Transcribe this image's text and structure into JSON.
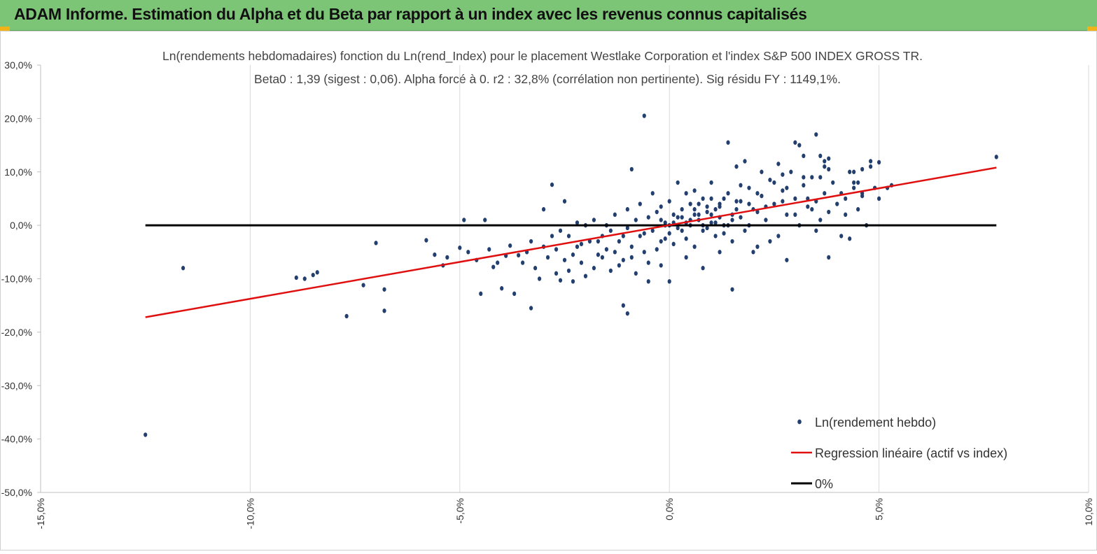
{
  "header": {
    "title": "ADAM Informe. Estimation du Alpha et du Beta par rapport à un index avec les revenus connus capitalisés"
  },
  "colors": {
    "banner": "#7dc576",
    "points": "#233f6e",
    "regression": "#e01010",
    "zero_line": "#000000",
    "grid": "#d9d9d9"
  },
  "chart_data": {
    "type": "scatter",
    "title": "Ln(rendements hebdomadaires) fonction du Ln(rend_Index) pour le placement Westlake Corporation et l'index S&P 500 INDEX GROSS TR.",
    "subtitle": "Beta0 : 1,39 (sigest : 0,06). Alpha forcé à 0. r2 : 32,8% (corrélation non pertinente). Sig résidu FY : 1149,1%.",
    "xlim": [
      -0.15,
      0.1
    ],
    "ylim": [
      -0.5,
      0.3
    ],
    "x_ticks": [
      -0.15,
      -0.1,
      -0.05,
      0.0,
      0.05,
      0.1
    ],
    "x_tick_labels": [
      "-15,0%",
      "-10,0%",
      "-5,0%",
      "0,0%",
      "5,0%",
      "10,0%"
    ],
    "y_ticks": [
      0.3,
      0.2,
      0.1,
      0.0,
      -0.1,
      -0.2,
      -0.3,
      -0.4,
      -0.5
    ],
    "y_tick_labels": [
      "30,0%",
      "20,0%",
      "10,0%",
      "0,0%",
      "-10,0%",
      "-20,0%",
      "-30,0%",
      "-40,0%",
      "-50,0%"
    ],
    "grid": "vertical",
    "legend_position": "bottom-right",
    "series": [
      {
        "name": "Ln(rendement hebdo)",
        "kind": "points",
        "points": [
          [
            -0.125,
            -0.392
          ],
          [
            -0.116,
            -0.08
          ],
          [
            -0.089,
            -0.098
          ],
          [
            -0.087,
            -0.1
          ],
          [
            -0.085,
            -0.093
          ],
          [
            -0.084,
            -0.088
          ],
          [
            -0.077,
            -0.17
          ],
          [
            -0.073,
            -0.112
          ],
          [
            -0.07,
            -0.033
          ],
          [
            -0.068,
            -0.12
          ],
          [
            -0.068,
            -0.16
          ],
          [
            -0.058,
            -0.028
          ],
          [
            -0.056,
            -0.055
          ],
          [
            -0.054,
            -0.075
          ],
          [
            -0.053,
            -0.06
          ],
          [
            -0.05,
            -0.042
          ],
          [
            -0.049,
            0.01
          ],
          [
            -0.048,
            -0.05
          ],
          [
            -0.046,
            -0.065
          ],
          [
            -0.045,
            -0.128
          ],
          [
            -0.044,
            0.01
          ],
          [
            -0.043,
            -0.045
          ],
          [
            -0.042,
            -0.078
          ],
          [
            -0.041,
            -0.07
          ],
          [
            -0.04,
            -0.118
          ],
          [
            -0.039,
            -0.057
          ],
          [
            -0.038,
            -0.038
          ],
          [
            -0.037,
            -0.128
          ],
          [
            -0.036,
            -0.056
          ],
          [
            -0.035,
            -0.07
          ],
          [
            -0.034,
            -0.05
          ],
          [
            -0.033,
            -0.03
          ],
          [
            -0.032,
            -0.08
          ],
          [
            -0.031,
            -0.1
          ],
          [
            -0.03,
            -0.04
          ],
          [
            -0.029,
            -0.06
          ],
          [
            -0.028,
            -0.02
          ],
          [
            -0.027,
            -0.045
          ],
          [
            -0.026,
            -0.01
          ],
          [
            -0.025,
            -0.065
          ],
          [
            -0.024,
            -0.085
          ],
          [
            -0.023,
            -0.055
          ],
          [
            -0.022,
            0.005
          ],
          [
            -0.021,
            -0.035
          ],
          [
            -0.02,
            -0.095
          ],
          [
            -0.033,
            -0.155
          ],
          [
            -0.03,
            0.03
          ],
          [
            -0.028,
            0.076
          ],
          [
            -0.027,
            -0.09
          ],
          [
            -0.026,
            -0.103
          ],
          [
            -0.025,
            0.045
          ],
          [
            -0.024,
            -0.02
          ],
          [
            -0.023,
            -0.105
          ],
          [
            -0.022,
            -0.04
          ],
          [
            -0.021,
            -0.07
          ],
          [
            -0.02,
            0.0
          ],
          [
            -0.019,
            -0.03
          ],
          [
            -0.018,
            -0.08
          ],
          [
            -0.017,
            -0.055
          ],
          [
            -0.016,
            -0.02
          ],
          [
            -0.015,
            -0.045
          ],
          [
            -0.014,
            -0.085
          ],
          [
            -0.013,
            0.02
          ],
          [
            -0.012,
            -0.03
          ],
          [
            -0.011,
            -0.065
          ],
          [
            -0.01,
            -0.005
          ],
          [
            -0.009,
            -0.04
          ],
          [
            -0.008,
            0.01
          ],
          [
            -0.007,
            -0.02
          ],
          [
            -0.006,
            -0.05
          ],
          [
            -0.005,
            0.015
          ],
          [
            -0.004,
            -0.01
          ],
          [
            -0.003,
            0.025
          ],
          [
            -0.002,
            -0.03
          ],
          [
            -0.001,
            0.005
          ],
          [
            0.0,
            -0.015
          ],
          [
            0.001,
            0.02
          ],
          [
            0.002,
            -0.005
          ],
          [
            0.003,
            0.03
          ],
          [
            0.004,
            -0.025
          ],
          [
            0.005,
            0.01
          ],
          [
            0.006,
            -0.04
          ],
          [
            0.007,
            0.04
          ],
          [
            0.008,
            0.0
          ],
          [
            0.009,
            0.025
          ],
          [
            -0.018,
            0.01
          ],
          [
            -0.017,
            -0.03
          ],
          [
            -0.016,
            -0.06
          ],
          [
            -0.015,
            0.0
          ],
          [
            -0.014,
            -0.01
          ],
          [
            -0.013,
            -0.05
          ],
          [
            -0.012,
            -0.075
          ],
          [
            -0.011,
            -0.02
          ],
          [
            -0.01,
            0.03
          ],
          [
            -0.009,
            -0.06
          ],
          [
            -0.008,
            -0.09
          ],
          [
            -0.007,
            0.04
          ],
          [
            -0.006,
            -0.015
          ],
          [
            -0.005,
            -0.07
          ],
          [
            -0.004,
            0.06
          ],
          [
            -0.003,
            -0.045
          ],
          [
            -0.002,
            0.035
          ],
          [
            -0.001,
            -0.025
          ],
          [
            0.0,
            0.045
          ],
          [
            0.001,
            -0.035
          ],
          [
            -0.011,
            -0.15
          ],
          [
            -0.01,
            -0.165
          ],
          [
            -0.006,
            0.205
          ],
          [
            -0.009,
            0.105
          ],
          [
            -0.005,
            -0.105
          ],
          [
            -0.002,
            -0.075
          ],
          [
            0.0,
            -0.105
          ],
          [
            0.002,
            0.08
          ],
          [
            0.004,
            -0.06
          ],
          [
            0.006,
            0.065
          ],
          [
            0.008,
            -0.08
          ],
          [
            0.01,
            0.05
          ],
          [
            0.012,
            -0.05
          ],
          [
            0.014,
            0.155
          ],
          [
            0.015,
            -0.12
          ],
          [
            0.01,
            0.02
          ],
          [
            0.011,
            -0.02
          ],
          [
            0.012,
            0.035
          ],
          [
            0.013,
            0.0
          ],
          [
            0.014,
            0.06
          ],
          [
            0.015,
            -0.03
          ],
          [
            0.016,
            0.045
          ],
          [
            0.017,
            0.015
          ],
          [
            0.018,
            -0.01
          ],
          [
            0.019,
            0.07
          ],
          [
            0.02,
            0.03
          ],
          [
            0.021,
            -0.04
          ],
          [
            0.022,
            0.055
          ],
          [
            0.023,
            0.01
          ],
          [
            0.024,
            0.085
          ],
          [
            0.025,
            0.04
          ],
          [
            0.026,
            -0.02
          ],
          [
            0.027,
            0.065
          ],
          [
            0.028,
            0.02
          ],
          [
            0.029,
            0.1
          ],
          [
            0.03,
            0.05
          ],
          [
            0.031,
            0.0
          ],
          [
            0.032,
            0.075
          ],
          [
            0.033,
            0.035
          ],
          [
            0.034,
            0.09
          ],
          [
            0.035,
            0.045
          ],
          [
            0.036,
            0.01
          ],
          [
            0.037,
            0.06
          ],
          [
            0.038,
            0.025
          ],
          [
            0.039,
            0.08
          ],
          [
            0.016,
            0.11
          ],
          [
            0.018,
            0.12
          ],
          [
            0.02,
            -0.05
          ],
          [
            0.022,
            0.1
          ],
          [
            0.024,
            -0.03
          ],
          [
            0.026,
            0.115
          ],
          [
            0.027,
            0.095
          ],
          [
            0.028,
            0.07
          ],
          [
            0.03,
            0.155
          ],
          [
            0.031,
            0.15
          ],
          [
            0.032,
            0.09
          ],
          [
            0.033,
            0.05
          ],
          [
            0.034,
            0.03
          ],
          [
            0.035,
            -0.01
          ],
          [
            0.036,
            0.09
          ],
          [
            0.037,
            0.11
          ],
          [
            0.038,
            0.105
          ],
          [
            0.028,
            -0.065
          ],
          [
            0.03,
            0.02
          ],
          [
            0.032,
            0.13
          ],
          [
            0.035,
            0.17
          ],
          [
            0.036,
            0.13
          ],
          [
            0.037,
            0.12
          ],
          [
            0.038,
            -0.06
          ],
          [
            0.04,
            0.04
          ],
          [
            0.041,
            0.06
          ],
          [
            0.042,
            0.02
          ],
          [
            0.043,
            0.1
          ],
          [
            0.044,
            0.08
          ],
          [
            0.045,
            0.03
          ],
          [
            0.046,
            0.055
          ],
          [
            0.047,
            0.0
          ],
          [
            0.048,
            0.12
          ],
          [
            0.049,
            0.07
          ],
          [
            0.05,
            0.05
          ],
          [
            0.004,
            0.06
          ],
          [
            0.006,
            0.02
          ],
          [
            0.008,
            0.05
          ],
          [
            0.01,
            0.08
          ],
          [
            0.012,
            0.04
          ],
          [
            0.003,
            0.015
          ],
          [
            0.005,
            0.04
          ],
          [
            0.007,
            0.01
          ],
          [
            0.009,
            0.035
          ],
          [
            0.011,
            0.005
          ],
          [
            0.013,
            0.05
          ],
          [
            0.015,
            0.02
          ],
          [
            0.017,
            0.075
          ],
          [
            0.019,
            0.04
          ],
          [
            0.021,
            0.025
          ],
          [
            -0.002,
            0.01
          ],
          [
            0.0,
            0.0
          ],
          [
            0.002,
            0.015
          ],
          [
            0.004,
            0.005
          ],
          [
            0.006,
            0.03
          ],
          [
            0.008,
            -0.01
          ],
          [
            0.01,
            0.005
          ],
          [
            0.012,
            0.015
          ],
          [
            0.014,
            0.0
          ],
          [
            0.016,
            0.03
          ],
          [
            -0.001,
            0.0
          ],
          [
            0.001,
            0.005
          ],
          [
            0.003,
            -0.01
          ],
          [
            0.005,
            0.0
          ],
          [
            0.007,
            0.02
          ],
          [
            0.009,
            -0.005
          ],
          [
            0.011,
            0.03
          ],
          [
            0.013,
            -0.015
          ],
          [
            0.015,
            0.01
          ],
          [
            0.017,
            0.045
          ],
          [
            0.019,
            0.0
          ],
          [
            0.021,
            0.06
          ],
          [
            0.023,
            0.035
          ],
          [
            0.025,
            0.08
          ],
          [
            0.027,
            0.045
          ],
          [
            0.044,
            0.1
          ],
          [
            0.046,
            0.105
          ],
          [
            0.048,
            0.11
          ],
          [
            0.05,
            0.118
          ],
          [
            0.052,
            0.07
          ],
          [
            0.053,
            0.075
          ],
          [
            0.078,
            0.128
          ],
          [
            0.038,
            0.125
          ],
          [
            0.041,
            -0.02
          ],
          [
            0.042,
            0.05
          ],
          [
            0.043,
            -0.025
          ],
          [
            0.044,
            0.07
          ],
          [
            0.045,
            0.08
          ],
          [
            0.046,
            0.06
          ]
        ]
      },
      {
        "name": "Regression linéaire (actif vs index)",
        "kind": "line",
        "points": [
          [
            -0.125,
            -0.172
          ],
          [
            0.078,
            0.108
          ]
        ]
      },
      {
        "name": "0%",
        "kind": "line",
        "points": [
          [
            -0.125,
            0.0
          ],
          [
            0.078,
            0.0
          ]
        ]
      }
    ]
  }
}
